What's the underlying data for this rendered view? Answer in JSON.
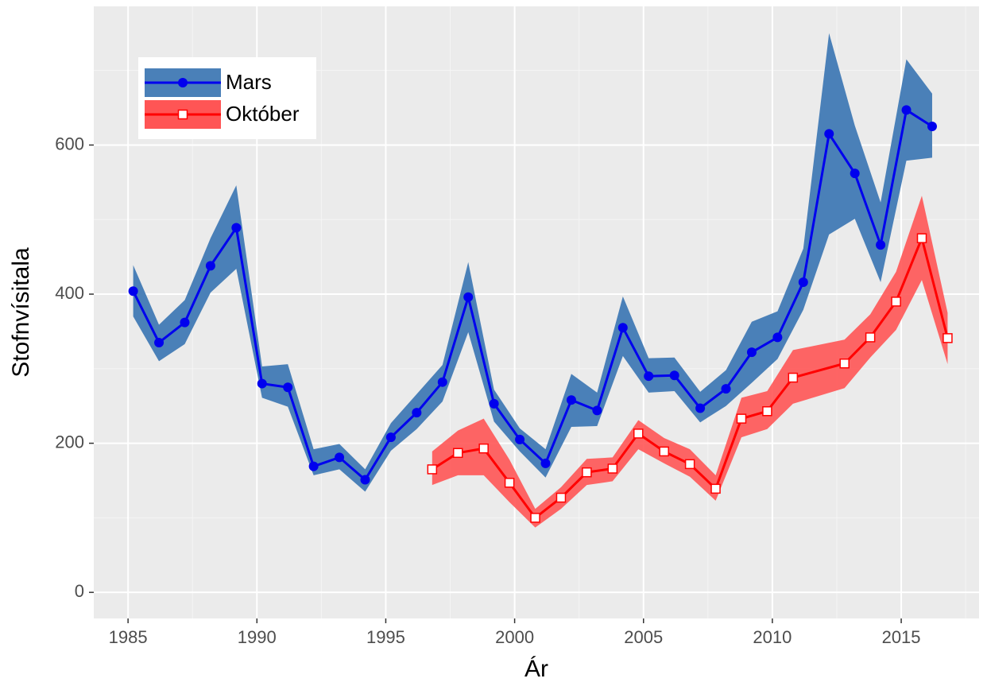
{
  "chart_data": {
    "type": "line",
    "xlabel": "Ár",
    "ylabel": "Stofnvísitala",
    "xlim": [
      1983.67,
      2018.02
    ],
    "ylim": [
      -35,
      786
    ],
    "xticks": [
      1985,
      1990,
      1995,
      2000,
      2005,
      2010,
      2015
    ],
    "yticks": [
      0,
      200,
      400,
      600
    ],
    "grid": true,
    "legend": "upper left",
    "series": [
      {
        "name": "Mars",
        "color": "#0000ee",
        "band_color": "#4a80b8",
        "marker": "circle",
        "x": [
          1985.2,
          1986.2,
          1987.2,
          1988.2,
          1989.2,
          1990.2,
          1991.2,
          1992.2,
          1993.2,
          1994.2,
          1995.2,
          1996.2,
          1997.2,
          1998.2,
          1999.2,
          2000.2,
          2001.2,
          2002.2,
          2003.2,
          2004.2,
          2005.2,
          2006.2,
          2007.2,
          2008.2,
          2009.2,
          2010.2,
          2011.2,
          2012.2,
          2013.2,
          2014.2,
          2015.2,
          2016.2
        ],
        "values": [
          404,
          335,
          362,
          438,
          489,
          280,
          275,
          169,
          181,
          151,
          208,
          241,
          282,
          396,
          253,
          205,
          173,
          258,
          244,
          355,
          290,
          291,
          247,
          273,
          322,
          342,
          416,
          615,
          562,
          466,
          647,
          625
        ],
        "lower": [
          370,
          310,
          333,
          402,
          434,
          261,
          249,
          157,
          165,
          135,
          190,
          219,
          256,
          349,
          229,
          189,
          154,
          222,
          223,
          317,
          268,
          270,
          228,
          250,
          281,
          313,
          379,
          480,
          501,
          416,
          579,
          583
        ],
        "upper": [
          439,
          359,
          392,
          475,
          546,
          303,
          306,
          192,
          199,
          165,
          227,
          266,
          305,
          443,
          272,
          220,
          192,
          293,
          268,
          397,
          314,
          315,
          269,
          298,
          363,
          377,
          461,
          750,
          626,
          523,
          715,
          669
        ]
      },
      {
        "name": "Október",
        "color": "#ff0000",
        "band_color": "#ff5555",
        "marker": "square",
        "x": [
          1996.8,
          1997.8,
          1998.8,
          1999.8,
          2000.8,
          2001.8,
          2002.8,
          2003.8,
          2004.8,
          2005.8,
          2006.8,
          2007.8,
          2008.8,
          2009.8,
          2010.8,
          2012.8,
          2013.8,
          2014.8,
          2015.8,
          2016.8
        ],
        "values": [
          165,
          187,
          193,
          147,
          100,
          127,
          161,
          166,
          213,
          189,
          172,
          139,
          233,
          243,
          288,
          307,
          342,
          390,
          475,
          341
        ],
        "lower": [
          144,
          157,
          157,
          121,
          87,
          112,
          144,
          149,
          192,
          173,
          155,
          123,
          208,
          219,
          253,
          274,
          315,
          352,
          419,
          306
        ],
        "upper": [
          189,
          217,
          233,
          178,
          112,
          141,
          179,
          181,
          231,
          207,
          192,
          157,
          261,
          270,
          325,
          339,
          373,
          430,
          532,
          375
        ]
      }
    ]
  }
}
